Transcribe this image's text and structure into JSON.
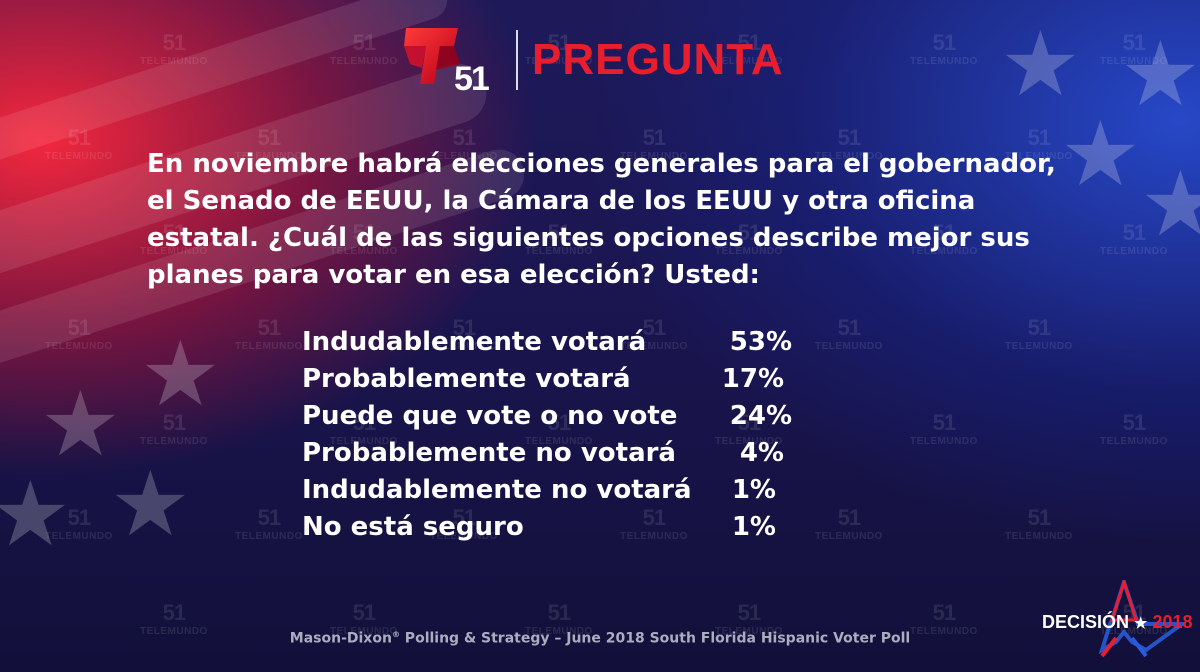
{
  "header": {
    "logo_number": "51",
    "title": "PREGUNTA"
  },
  "question": "En noviembre habrá elecciones generales para el gobernador, el Senado de EEUU, la Cámara de los EEUU y otra oficina estatal. ¿Cuál de las siguientes opciones describe mejor sus planes para votar en esa elección? Usted:",
  "results": [
    {
      "option": "Indudablemente votará",
      "percent": "53%"
    },
    {
      "option": "Probablemente votará",
      "percent": "17%"
    },
    {
      "option": "Puede que vote o no vote",
      "percent": "24%"
    },
    {
      "option": "Probablemente no votará",
      "percent": "4%"
    },
    {
      "option": "Indudablemente no votará",
      "percent": "1%"
    },
    {
      "option": "No está seguro",
      "percent": "1%"
    }
  ],
  "source": {
    "text_before": "Mason-Dixon",
    "reg_mark": "®",
    "text_after": " Polling & Strategy – June 2018 South Florida Hispanic Voter Poll"
  },
  "watermark": {
    "number": "51",
    "text": "TELEMUNDO"
  },
  "decision_logo": {
    "word": "DECISIÓN",
    "star": "★",
    "year": "2018"
  },
  "colors": {
    "brand_red": "#e81e2e",
    "text": "#ffffff"
  }
}
